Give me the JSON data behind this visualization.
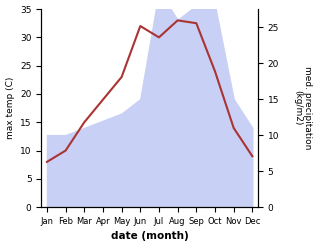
{
  "months": [
    "Jan",
    "Feb",
    "Mar",
    "Apr",
    "May",
    "Jun",
    "Jul",
    "Aug",
    "Sep",
    "Oct",
    "Nov",
    "Dec"
  ],
  "month_positions": [
    0,
    1,
    2,
    3,
    4,
    5,
    6,
    7,
    8,
    9,
    10,
    11
  ],
  "temp": [
    8.0,
    10.0,
    15.0,
    19.0,
    23.0,
    32.0,
    30.0,
    33.0,
    32.5,
    24.0,
    14.0,
    9.0
  ],
  "precip": [
    10.0,
    10.0,
    11.0,
    12.0,
    13.0,
    15.0,
    30.0,
    26.0,
    28.0,
    28.0,
    15.0,
    11.0
  ],
  "temp_color": "#aa3333",
  "precip_fill_color": "#c8d0f5",
  "precip_line_color": "#c8d0f5",
  "ylim_temp": [
    0,
    35
  ],
  "ylim_precip": [
    0,
    27.5
  ],
  "ylabel_left": "max temp (C)",
  "ylabel_right": "med. precipitation\n(kg/m2)",
  "xlabel": "date (month)",
  "yticks_left": [
    0,
    5,
    10,
    15,
    20,
    25,
    30,
    35
  ],
  "yticks_right": [
    0,
    5,
    10,
    15,
    20,
    25
  ],
  "background_color": "#ffffff"
}
